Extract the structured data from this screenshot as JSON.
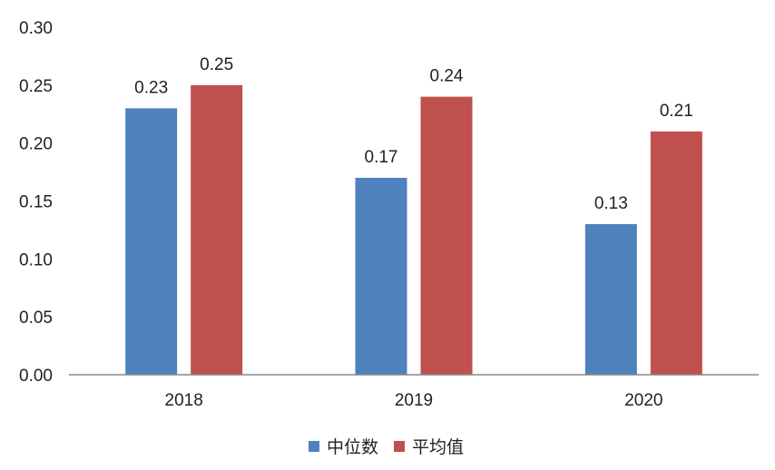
{
  "chart_data": {
    "type": "bar",
    "categories": [
      "2018",
      "2019",
      "2020"
    ],
    "series": [
      {
        "name": "中位数",
        "values": [
          0.23,
          0.17,
          0.13
        ],
        "labels": [
          "0.23",
          "0.17",
          "0.13"
        ],
        "color": "#4f81bd"
      },
      {
        "name": "平均值",
        "values": [
          0.25,
          0.24,
          0.21
        ],
        "labels": [
          "0.25",
          "0.24",
          "0.21"
        ],
        "color": "#c0504d"
      }
    ],
    "ylim": [
      0,
      0.3
    ],
    "yticks": [
      "0.00",
      "0.05",
      "0.10",
      "0.15",
      "0.20",
      "0.25",
      "0.30"
    ],
    "grid": false,
    "legend_position": "bottom-center"
  }
}
